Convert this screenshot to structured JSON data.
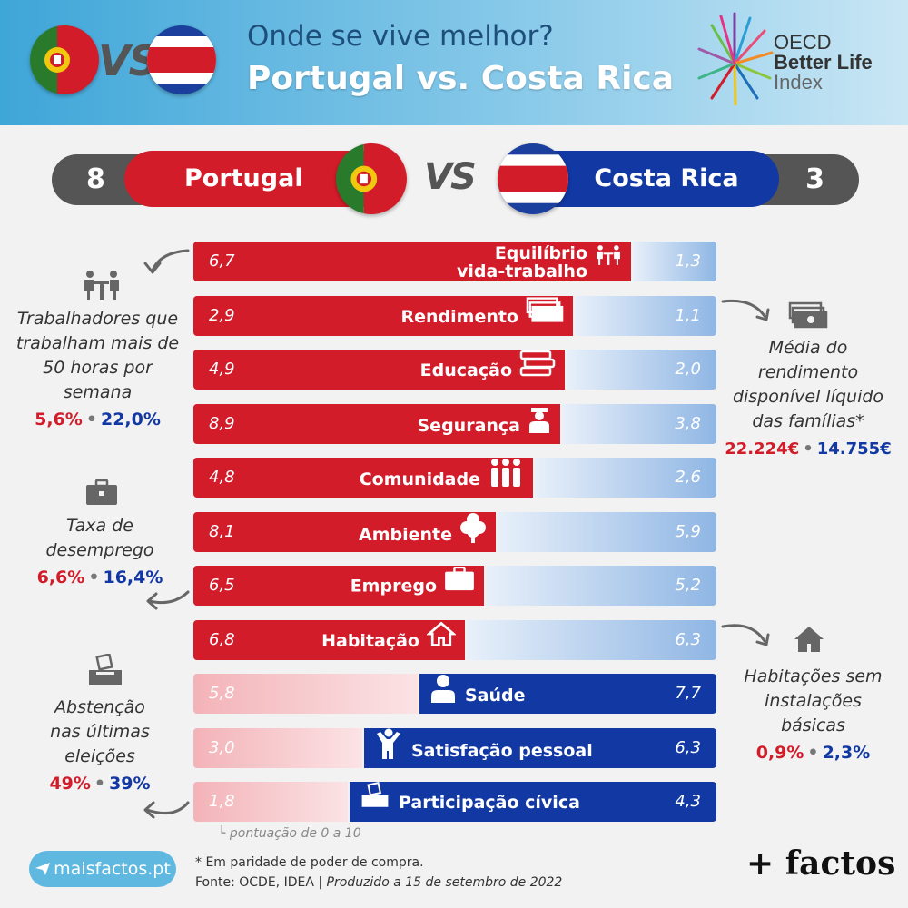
{
  "header": {
    "title": "Onde se vive melhor?",
    "subtitle": "Portugal vs. Costa Rica",
    "vs": "VS",
    "oecd_line1": "OECD",
    "oecd_line2": "Better Life",
    "oecd_line3": "Index"
  },
  "scoreboard": {
    "left_score": "8",
    "left_country": "Portugal",
    "vs": "VS",
    "right_country": "Costa Rica",
    "right_score": "3"
  },
  "colors": {
    "portugal": "#d21c2a",
    "portugal_light": "#f3b3b8",
    "costa_rica": "#1238a4",
    "costa_rica_light": "#c4d8f0"
  },
  "chart_data": {
    "type": "bar",
    "orientation": "horizontal diverging",
    "categories": [
      "Equilíbrio vida-trabalho",
      "Rendimento",
      "Educação",
      "Segurança",
      "Comunidade",
      "Ambiente",
      "Emprego",
      "Habitação",
      "Saúde",
      "Satisfação pessoal",
      "Participação cívica"
    ],
    "category_icons": [
      "meeting-icon",
      "money-icon",
      "books-icon",
      "police-icon",
      "people-icon",
      "tree-icon",
      "briefcase-icon",
      "house-icon",
      "doctor-icon",
      "happy-person-icon",
      "ballot-box-icon"
    ],
    "series": [
      {
        "name": "Portugal",
        "values": [
          6.7,
          2.9,
          4.9,
          8.9,
          4.8,
          8.1,
          6.5,
          6.8,
          5.8,
          3.0,
          1.8
        ],
        "labels": [
          "6,7",
          "2,9",
          "4,9",
          "8,9",
          "4,8",
          "8,1",
          "6,5",
          "6,8",
          "5,8",
          "3,0",
          "1,8"
        ]
      },
      {
        "name": "Costa Rica",
        "values": [
          1.3,
          1.1,
          2.0,
          3.8,
          2.6,
          5.9,
          5.2,
          6.3,
          7.7,
          6.3,
          4.3
        ],
        "labels": [
          "1,3",
          "1,1",
          "2,0",
          "3,8",
          "2,6",
          "5,9",
          "5,2",
          "6,3",
          "7,7",
          "6,3",
          "4,3"
        ]
      }
    ],
    "scale_note": "pontuação de 0 a 10"
  },
  "side_notes": {
    "work_hours": {
      "lines": [
        "Trabalhadores que",
        "trabalham mais de",
        "50 horas por",
        "semana"
      ],
      "pt": "5,6%",
      "cr": "22,0%"
    },
    "unemployment": {
      "lines": [
        "Taxa de",
        "desemprego"
      ],
      "pt": "6,6%",
      "cr": "16,4%"
    },
    "abstention": {
      "lines": [
        "Abstenção",
        "nas últimas",
        "eleições"
      ],
      "pt": "49%",
      "cr": "39%"
    },
    "income": {
      "lines": [
        "Média do",
        "rendimento",
        "disponível líquido",
        "das famílias*"
      ],
      "pt": "22.224€",
      "cr": "14.755€"
    },
    "housing": {
      "lines": [
        "Habitações sem",
        "instalações",
        "básicas"
      ],
      "pt": "0,9%",
      "cr": "2,3%"
    },
    "separator": "•"
  },
  "footer": {
    "site": "maisfactos.pt",
    "note1": "* Em paridade de poder de compra.",
    "note2_prefix": "Fonte: OCDE, IDEA | ",
    "note2_italic": "Produzido a 15 de setembro de 2022",
    "brand": "+ factos"
  }
}
